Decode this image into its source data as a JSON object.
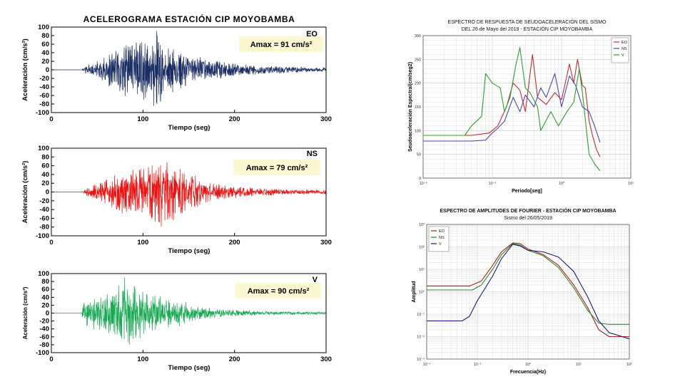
{
  "chart_data": [
    {
      "type": "line",
      "title": "ACELEROGRAMA  ESTACIÓN  CIP MOYOBAMBA",
      "component": "EO",
      "amax_label": "Amax = 91 cm/s²",
      "xlabel": "Tiempo (seg)",
      "ylabel": "Aceleración (cm/s²)",
      "xlim": [
        0,
        300
      ],
      "ylim": [
        -100,
        100
      ],
      "xticks": [
        0,
        100,
        200,
        300
      ],
      "yticks": [
        100,
        80,
        60,
        40,
        20,
        0,
        -20,
        -40,
        -60,
        -80,
        -100
      ],
      "color": "#1b2e63",
      "onset_s": 33,
      "peak_s": 115,
      "peak_abs": 91,
      "envelope": [
        [
          0,
          0
        ],
        [
          33,
          0
        ],
        [
          38,
          10
        ],
        [
          55,
          25
        ],
        [
          65,
          45
        ],
        [
          75,
          60
        ],
        [
          85,
          65
        ],
        [
          100,
          72
        ],
        [
          115,
          91
        ],
        [
          125,
          60
        ],
        [
          140,
          45
        ],
        [
          160,
          30
        ],
        [
          180,
          22
        ],
        [
          200,
          15
        ],
        [
          230,
          10
        ],
        [
          260,
          7
        ],
        [
          300,
          5
        ]
      ]
    },
    {
      "type": "line",
      "component": "NS",
      "amax_label": "Amax = 79 cm/s²",
      "xlabel": "Tiempo (seg)",
      "ylabel": "Aceleración (cm/s²)",
      "xlim": [
        0,
        300
      ],
      "ylim": [
        -100,
        100
      ],
      "xticks": [
        0,
        100,
        200,
        300
      ],
      "yticks": [
        100,
        80,
        60,
        40,
        20,
        0,
        -20,
        -40,
        -60,
        -80,
        -100
      ],
      "color": "#ee1111",
      "onset_s": 33,
      "peak_s": 120,
      "peak_abs": 79,
      "envelope": [
        [
          0,
          0
        ],
        [
          33,
          0
        ],
        [
          40,
          10
        ],
        [
          55,
          25
        ],
        [
          70,
          45
        ],
        [
          90,
          55
        ],
        [
          110,
          65
        ],
        [
          120,
          79
        ],
        [
          135,
          65
        ],
        [
          150,
          45
        ],
        [
          170,
          25
        ],
        [
          190,
          15
        ],
        [
          220,
          10
        ],
        [
          260,
          6
        ],
        [
          300,
          5
        ]
      ]
    },
    {
      "type": "line",
      "component": "V",
      "amax_label": "Amax = 90 cm/s²",
      "xlabel": "Tiempo (seg)",
      "ylabel": "Aceleración (cm/s²)",
      "xlim": [
        0,
        300
      ],
      "ylim": [
        -100,
        100
      ],
      "xticks": [
        0,
        100,
        200,
        300
      ],
      "yticks": [
        100,
        80,
        60,
        40,
        20,
        0,
        -20,
        -40,
        -60,
        -80,
        -100
      ],
      "color": "#1aaa55",
      "onset_s": 33,
      "peak_s": 80,
      "peak_abs": 90,
      "envelope": [
        [
          0,
          0
        ],
        [
          33,
          0
        ],
        [
          35,
          30
        ],
        [
          45,
          40
        ],
        [
          60,
          55
        ],
        [
          75,
          70
        ],
        [
          80,
          90
        ],
        [
          95,
          65
        ],
        [
          110,
          50
        ],
        [
          130,
          35
        ],
        [
          150,
          25
        ],
        [
          170,
          15
        ],
        [
          190,
          10
        ],
        [
          230,
          5
        ],
        [
          300,
          3
        ]
      ]
    },
    {
      "type": "line",
      "title": "ESPECTRO DE RESPUESTA DE SEUDOACELERACIÓN DEL SISMO",
      "subtitle": "DEL 26 de Mayo del 2019 - ESTACIÓN CIP MOYOBAMBA",
      "xlabel": "Periodo[seg]",
      "ylabel": "Seudoaceleración Espectral(cm/seg2)",
      "xscale": "log",
      "xlim": [
        0.01,
        10
      ],
      "ylim": [
        0,
        300
      ],
      "xticks": [
        "10⁻²",
        "10⁻¹",
        "10⁰",
        "10¹"
      ],
      "yticks": [
        0,
        50,
        100,
        150,
        200,
        250,
        300
      ],
      "legend_position": "top-right",
      "series": [
        {
          "name": "EO",
          "color": "#c42b2b",
          "points": [
            [
              0.01,
              90
            ],
            [
              0.05,
              90
            ],
            [
              0.09,
              95
            ],
            [
              0.12,
              110
            ],
            [
              0.16,
              150
            ],
            [
              0.2,
              200
            ],
            [
              0.25,
              185
            ],
            [
              0.3,
              140
            ],
            [
              0.38,
              260
            ],
            [
              0.45,
              170
            ],
            [
              0.6,
              155
            ],
            [
              0.8,
              180
            ],
            [
              1.0,
              165
            ],
            [
              1.3,
              240
            ],
            [
              1.5,
              200
            ],
            [
              1.7,
              250
            ],
            [
              2.0,
              195
            ],
            [
              2.2,
              190
            ],
            [
              2.5,
              120
            ],
            [
              2.8,
              90
            ],
            [
              3.2,
              60
            ],
            [
              3.6,
              45
            ]
          ]
        },
        {
          "name": "NS",
          "color": "#4a49b5",
          "points": [
            [
              0.01,
              78
            ],
            [
              0.05,
              78
            ],
            [
              0.08,
              80
            ],
            [
              0.1,
              95
            ],
            [
              0.12,
              105
            ],
            [
              0.15,
              120
            ],
            [
              0.2,
              170
            ],
            [
              0.25,
              140
            ],
            [
              0.3,
              175
            ],
            [
              0.4,
              150
            ],
            [
              0.5,
              190
            ],
            [
              0.6,
              170
            ],
            [
              0.8,
              220
            ],
            [
              1.0,
              150
            ],
            [
              1.3,
              215
            ],
            [
              1.6,
              195
            ],
            [
              2.0,
              150
            ],
            [
              2.5,
              140
            ],
            [
              3.0,
              110
            ],
            [
              3.6,
              75
            ]
          ]
        },
        {
          "name": "V",
          "color": "#2f9c2f",
          "points": [
            [
              0.01,
              90
            ],
            [
              0.04,
              90
            ],
            [
              0.05,
              110
            ],
            [
              0.07,
              130
            ],
            [
              0.08,
              220
            ],
            [
              0.1,
              200
            ],
            [
              0.13,
              190
            ],
            [
              0.15,
              140
            ],
            [
              0.18,
              170
            ],
            [
              0.22,
              240
            ],
            [
              0.25,
              275
            ],
            [
              0.3,
              190
            ],
            [
              0.35,
              180
            ],
            [
              0.45,
              150
            ],
            [
              0.5,
              100
            ],
            [
              0.7,
              140
            ],
            [
              0.9,
              110
            ],
            [
              1.2,
              140
            ],
            [
              1.5,
              160
            ],
            [
              1.8,
              230
            ],
            [
              2.0,
              180
            ],
            [
              2.5,
              50
            ],
            [
              3.0,
              30
            ],
            [
              3.6,
              15
            ]
          ]
        }
      ]
    },
    {
      "type": "line",
      "title": "ESPECTRO DE AMPLITUDES DE FOURIER - ESTACIÓN CIP MOYOBAMBA",
      "subtitle": "Sismo del 26/05/2019",
      "xlabel": "Frecuencia(Hz)",
      "ylabel": "Amplitud",
      "xscale": "log",
      "yscale": "log",
      "xlim": [
        0.01,
        100
      ],
      "ylim": [
        0.001,
        1000
      ],
      "xticks": [
        "10⁻²",
        "10⁻¹",
        "10⁰",
        "10¹",
        "10²"
      ],
      "yticks": [
        "10³",
        "10²",
        "10¹",
        "10⁰",
        "10⁻¹",
        "10⁻²",
        "10⁻³"
      ],
      "legend_position": "top-left",
      "series": [
        {
          "name": "EO",
          "color": "#b01f1f",
          "points": [
            [
              0.01,
              1.8
            ],
            [
              0.07,
              1.8
            ],
            [
              0.12,
              3
            ],
            [
              0.2,
              15
            ],
            [
              0.3,
              60
            ],
            [
              0.5,
              150
            ],
            [
              0.7,
              140
            ],
            [
              1.0,
              80
            ],
            [
              2,
              45
            ],
            [
              4,
              15
            ],
            [
              8,
              2
            ],
            [
              15,
              0.2
            ],
            [
              25,
              0.02
            ],
            [
              40,
              0.01
            ],
            [
              100,
              0.01
            ]
          ]
        },
        {
          "name": "NS",
          "color": "#2d8a2d",
          "points": [
            [
              0.01,
              1.2
            ],
            [
              0.08,
              1.2
            ],
            [
              0.12,
              2
            ],
            [
              0.2,
              10
            ],
            [
              0.3,
              45
            ],
            [
              0.5,
              140
            ],
            [
              0.7,
              120
            ],
            [
              1.0,
              70
            ],
            [
              2,
              40
            ],
            [
              4,
              12
            ],
            [
              8,
              1.5
            ],
            [
              15,
              0.15
            ],
            [
              25,
              0.04
            ],
            [
              40,
              0.035
            ],
            [
              100,
              0.035
            ]
          ]
        },
        {
          "name": "V",
          "color": "#1c1c7a",
          "points": [
            [
              0.01,
              0.05
            ],
            [
              0.05,
              0.05
            ],
            [
              0.07,
              0.08
            ],
            [
              0.1,
              0.4
            ],
            [
              0.2,
              5
            ],
            [
              0.3,
              30
            ],
            [
              0.5,
              130
            ],
            [
              0.7,
              110
            ],
            [
              1.0,
              70
            ],
            [
              2,
              60
            ],
            [
              4,
              35
            ],
            [
              8,
              8
            ],
            [
              15,
              0.6
            ],
            [
              25,
              0.05
            ],
            [
              40,
              0.015
            ],
            [
              100,
              0.008
            ]
          ]
        }
      ]
    }
  ]
}
